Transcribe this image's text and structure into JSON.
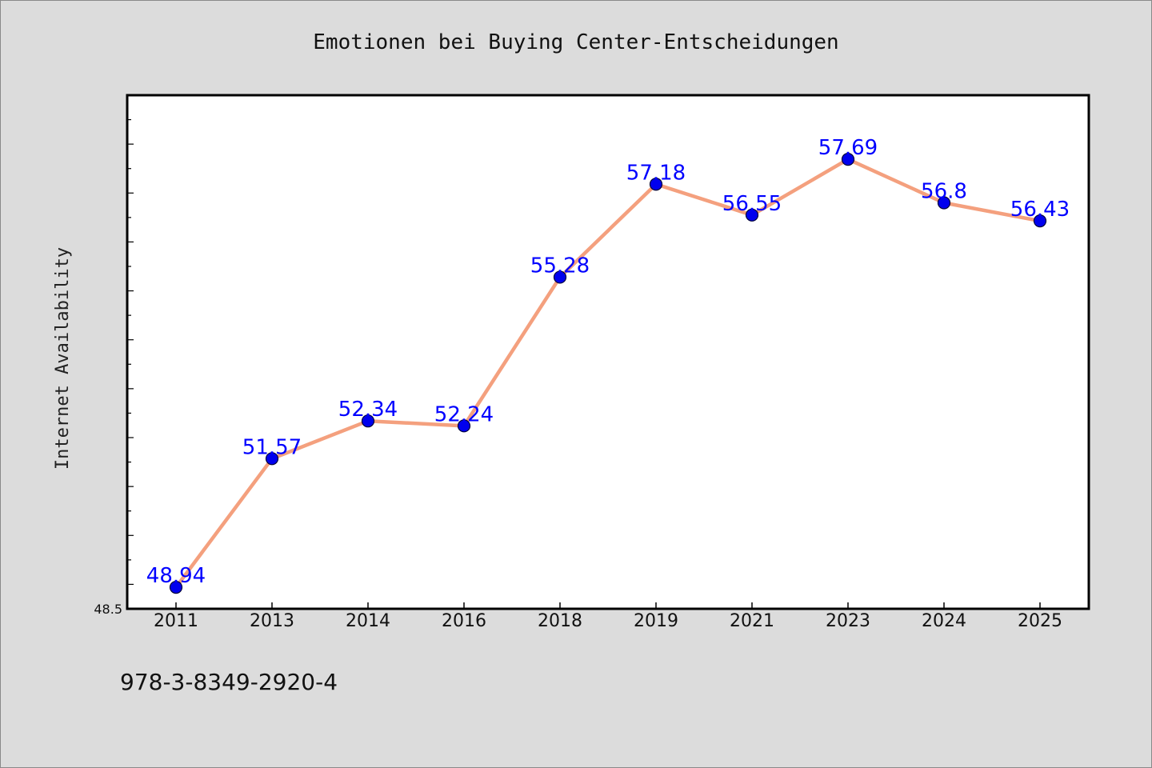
{
  "chart_data": {
    "type": "line",
    "title": "Emotionen bei Buying Center-Entscheidungen",
    "xlabel": "",
    "ylabel": "Internet Availability",
    "categories": [
      "2011",
      "2013",
      "2014",
      "2016",
      "2018",
      "2019",
      "2021",
      "2023",
      "2024",
      "2025"
    ],
    "series": [
      {
        "values": [
          48.94,
          51.57,
          52.34,
          52.24,
          55.28,
          57.18,
          56.55,
          57.69,
          56.8,
          56.43
        ],
        "data_labels": [
          "48.94",
          "51.57",
          "52.34",
          "52.24",
          "55.28",
          "57.18",
          "56.55",
          "57.69",
          "56.8",
          "56.43"
        ],
        "line_color": "#f4a07e",
        "marker_color": "#0000ee",
        "label_color": "#0000ff"
      }
    ],
    "ylim": [
      48.5,
      59.0
    ],
    "y_tick_labels": [
      "48.5"
    ],
    "grid": false,
    "legend": "none"
  },
  "footer_text": "978-3-8349-2920-4",
  "colors": {
    "background": "#dcdcdc",
    "plot_background": "#ffffff",
    "axis": "#000000"
  }
}
